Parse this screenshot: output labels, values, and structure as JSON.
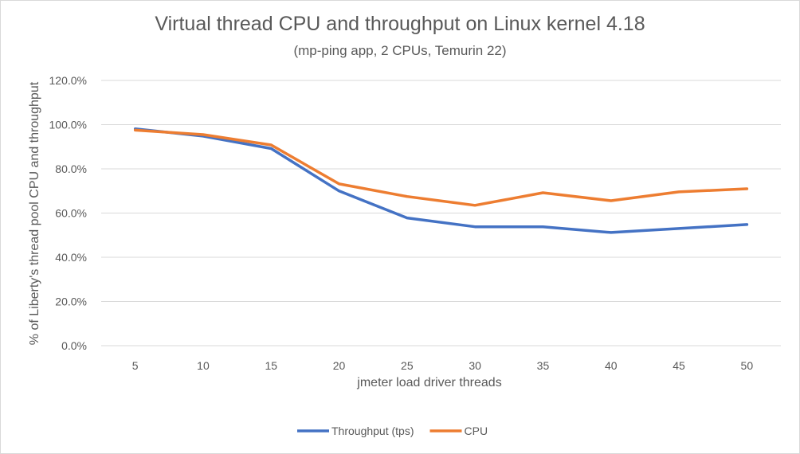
{
  "chart_data": {
    "type": "line",
    "title": "Virtual thread CPU and throughput on Linux kernel 4.18",
    "subtitle": "(mp-ping app, 2 CPUs, Temurin 22)",
    "xlabel": "jmeter load driver threads",
    "ylabel": "% of Liberty's thread pool CPU and throughput",
    "categories": [
      "5",
      "10",
      "15",
      "20",
      "25",
      "30",
      "35",
      "40",
      "45",
      "50"
    ],
    "y_ticks": [
      "0.0%",
      "20.0%",
      "40.0%",
      "60.0%",
      "80.0%",
      "100.0%",
      "120.0%"
    ],
    "ylim": [
      0,
      120
    ],
    "grid": true,
    "legend_position": "bottom",
    "series": [
      {
        "name": "Throughput (tps)",
        "color": "#4472c4",
        "values": [
          98.1,
          94.8,
          89.2,
          70.0,
          57.8,
          53.8,
          53.8,
          51.2,
          53.0,
          54.8
        ]
      },
      {
        "name": "CPU",
        "color": "#ed7d31",
        "values": [
          97.5,
          95.5,
          90.8,
          73.2,
          67.5,
          63.5,
          69.2,
          65.6,
          69.6,
          71.0
        ]
      }
    ]
  }
}
